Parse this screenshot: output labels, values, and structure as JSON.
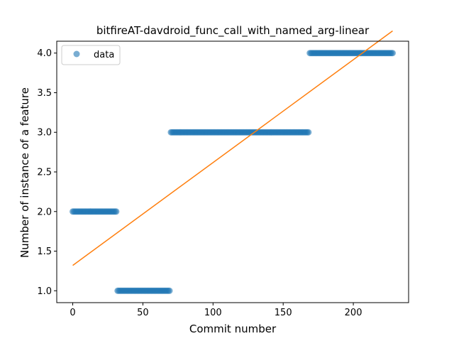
{
  "chart_data": {
    "type": "scatter",
    "title": "bitfireAT-davdroid_func_call_with_named_arg-linear",
    "xlabel": "Commit number",
    "ylabel": "Number of instance of a feature",
    "xlim": [
      -11.4,
      239.4
    ],
    "ylim": [
      0.85,
      4.15
    ],
    "xticks": [
      0,
      50,
      100,
      150,
      200
    ],
    "yticks": [
      1.0,
      1.5,
      2.0,
      2.5,
      3.0,
      3.5,
      4.0
    ],
    "grid": false,
    "legend_position": "top-left",
    "series": [
      {
        "name": "data",
        "kind": "points",
        "color": "#1f77b4",
        "segments": [
          {
            "x_from": 0,
            "x_to": 31,
            "y": 2.0
          },
          {
            "x_from": 32,
            "x_to": 69,
            "y": 1.0
          },
          {
            "x_from": 70,
            "x_to": 168,
            "y": 3.0
          },
          {
            "x_from": 169,
            "x_to": 228,
            "y": 4.0
          }
        ]
      },
      {
        "kind": "line",
        "color": "#ff7f0e",
        "x": [
          0,
          228
        ],
        "y": [
          1.32,
          4.28
        ]
      }
    ]
  }
}
